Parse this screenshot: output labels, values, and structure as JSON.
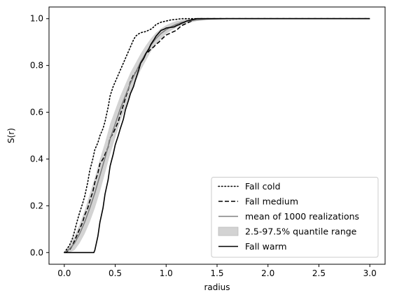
{
  "chart_data": {
    "type": "line",
    "title": "",
    "xlabel": "radius",
    "ylabel": "S(r)",
    "xlim": [
      -0.15,
      3.15
    ],
    "ylim": [
      -0.05,
      1.05
    ],
    "xticks": [
      "0.0",
      "0.5",
      "1.0",
      "1.5",
      "2.0",
      "2.5",
      "3.0"
    ],
    "yticks": [
      "0.0",
      "0.2",
      "0.4",
      "0.6",
      "0.8",
      "1.0"
    ],
    "xtick_values": [
      0,
      0.5,
      1.0,
      1.5,
      2.0,
      2.5,
      3.0
    ],
    "ytick_values": [
      0,
      0.2,
      0.4,
      0.6,
      0.8,
      1.0
    ],
    "legend_position": "bottom-right",
    "legend": [
      "Fall cold",
      "Fall medium",
      "mean of 1000 realizations",
      "2.5-97.5% quantile range",
      "Fall warm"
    ],
    "band": {
      "name": "2.5-97.5% quantile range",
      "color": "#d3d3d3",
      "x": [
        0.0,
        0.05,
        0.1,
        0.15,
        0.2,
        0.25,
        0.3,
        0.35,
        0.4,
        0.45,
        0.5,
        0.55,
        0.6,
        0.65,
        0.7,
        0.75,
        0.8,
        0.85,
        0.9,
        0.95,
        1.0,
        1.05,
        1.1,
        1.15,
        1.2,
        1.3,
        1.4,
        1.5,
        1.6,
        1.7,
        1.8,
        3.0
      ],
      "lower": [
        0.0,
        0.0,
        0.01,
        0.04,
        0.08,
        0.13,
        0.19,
        0.26,
        0.34,
        0.42,
        0.49,
        0.56,
        0.62,
        0.68,
        0.73,
        0.78,
        0.82,
        0.86,
        0.89,
        0.915,
        0.935,
        0.95,
        0.962,
        0.972,
        0.98,
        0.99,
        0.995,
        0.998,
        1.0,
        1.0,
        1.0,
        1.0
      ],
      "upper": [
        0.0,
        0.03,
        0.07,
        0.12,
        0.18,
        0.25,
        0.32,
        0.4,
        0.47,
        0.55,
        0.61,
        0.67,
        0.72,
        0.77,
        0.81,
        0.85,
        0.885,
        0.915,
        0.94,
        0.958,
        0.972,
        0.982,
        0.99,
        0.995,
        0.998,
        1.0,
        1.0,
        1.0,
        1.0,
        1.0,
        1.0,
        1.0
      ]
    },
    "series": [
      {
        "name": "Fall cold",
        "style": "dotted",
        "color": "#000000",
        "x": [
          0.0,
          0.05,
          0.08,
          0.1,
          0.13,
          0.15,
          0.18,
          0.2,
          0.23,
          0.25,
          0.28,
          0.3,
          0.33,
          0.35,
          0.38,
          0.4,
          0.43,
          0.45,
          0.48,
          0.5,
          0.55,
          0.6,
          0.63,
          0.65,
          0.68,
          0.7,
          0.73,
          0.75,
          0.8,
          0.85,
          0.88,
          0.9,
          0.95,
          1.0,
          1.05,
          1.1,
          1.15,
          1.2,
          1.25,
          1.3,
          3.0
        ],
        "y": [
          0.0,
          0.03,
          0.06,
          0.09,
          0.14,
          0.17,
          0.21,
          0.24,
          0.3,
          0.35,
          0.4,
          0.44,
          0.47,
          0.5,
          0.53,
          0.56,
          0.62,
          0.67,
          0.71,
          0.73,
          0.78,
          0.83,
          0.86,
          0.88,
          0.91,
          0.925,
          0.935,
          0.94,
          0.945,
          0.955,
          0.965,
          0.975,
          0.985,
          0.99,
          0.995,
          0.997,
          1.0,
          1.0,
          1.0,
          1.0,
          1.0
        ]
      },
      {
        "name": "Fall medium",
        "style": "dashed",
        "color": "#000000",
        "x": [
          0.0,
          0.05,
          0.08,
          0.1,
          0.13,
          0.15,
          0.18,
          0.2,
          0.23,
          0.25,
          0.28,
          0.3,
          0.33,
          0.35,
          0.38,
          0.4,
          0.43,
          0.45,
          0.48,
          0.5,
          0.53,
          0.55,
          0.58,
          0.6,
          0.63,
          0.65,
          0.68,
          0.7,
          0.73,
          0.75,
          0.78,
          0.8,
          0.83,
          0.85,
          0.88,
          0.9,
          0.93,
          0.95,
          1.0,
          1.05,
          1.1,
          1.15,
          1.2,
          1.25,
          1.3,
          3.0
        ],
        "y": [
          0.0,
          0.01,
          0.03,
          0.05,
          0.08,
          0.1,
          0.13,
          0.16,
          0.19,
          0.22,
          0.26,
          0.3,
          0.34,
          0.38,
          0.4,
          0.42,
          0.45,
          0.49,
          0.51,
          0.53,
          0.56,
          0.59,
          0.63,
          0.66,
          0.7,
          0.73,
          0.76,
          0.77,
          0.79,
          0.81,
          0.83,
          0.85,
          0.86,
          0.87,
          0.88,
          0.89,
          0.9,
          0.91,
          0.93,
          0.94,
          0.95,
          0.97,
          0.98,
          0.99,
          1.0,
          1.0
        ]
      },
      {
        "name": "mean of 1000 realizations",
        "style": "solid",
        "color": "#808080",
        "x": [
          0.0,
          0.05,
          0.1,
          0.15,
          0.2,
          0.25,
          0.3,
          0.35,
          0.4,
          0.45,
          0.5,
          0.55,
          0.6,
          0.65,
          0.7,
          0.75,
          0.8,
          0.85,
          0.9,
          0.95,
          1.0,
          1.05,
          1.1,
          1.15,
          1.2,
          1.3,
          1.4,
          1.5,
          1.6,
          1.7,
          1.8,
          3.0
        ],
        "y": [
          0.0,
          0.015,
          0.04,
          0.08,
          0.13,
          0.19,
          0.255,
          0.33,
          0.405,
          0.485,
          0.55,
          0.615,
          0.67,
          0.725,
          0.77,
          0.815,
          0.852,
          0.887,
          0.915,
          0.937,
          0.953,
          0.966,
          0.976,
          0.984,
          0.989,
          0.995,
          0.998,
          0.999,
          1.0,
          1.0,
          1.0,
          1.0
        ]
      },
      {
        "name": "Fall warm",
        "style": "solid",
        "color": "#000000",
        "x": [
          0.0,
          0.29,
          0.3,
          0.33,
          0.35,
          0.38,
          0.4,
          0.43,
          0.45,
          0.48,
          0.5,
          0.53,
          0.55,
          0.58,
          0.6,
          0.63,
          0.65,
          0.68,
          0.7,
          0.73,
          0.75,
          0.78,
          0.8,
          0.83,
          0.85,
          0.88,
          0.9,
          0.93,
          0.95,
          0.98,
          1.0,
          1.03,
          1.05,
          1.08,
          1.1,
          1.13,
          1.15,
          1.18,
          1.2,
          1.25,
          1.3,
          3.0
        ],
        "y": [
          0.0,
          0.0,
          0.01,
          0.07,
          0.13,
          0.19,
          0.25,
          0.31,
          0.37,
          0.42,
          0.46,
          0.5,
          0.53,
          0.57,
          0.61,
          0.65,
          0.68,
          0.71,
          0.74,
          0.78,
          0.81,
          0.83,
          0.85,
          0.87,
          0.89,
          0.91,
          0.925,
          0.94,
          0.95,
          0.955,
          0.96,
          0.962,
          0.963,
          0.965,
          0.97,
          0.975,
          0.98,
          0.985,
          0.99,
          0.995,
          1.0,
          1.0
        ]
      }
    ]
  }
}
